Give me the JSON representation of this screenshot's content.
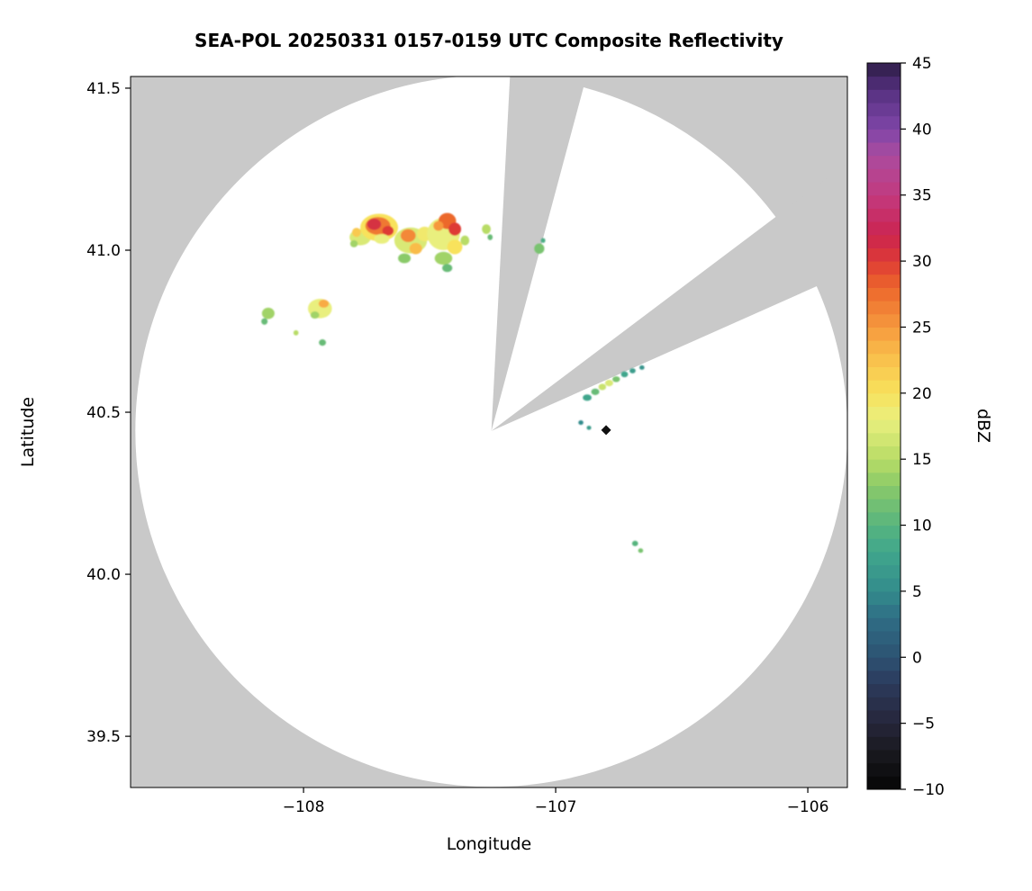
{
  "chart_data": {
    "type": "heatmap",
    "title": "SEA-POL 20250331 0157-0159 UTC Composite Reflectivity",
    "xlabel": "Longitude",
    "ylabel": "Latitude",
    "xlim": [
      -108.686,
      -105.843
    ],
    "ylim": [
      39.342,
      41.536
    ],
    "grid": false,
    "background_color": "#ffffff",
    "outside_range_color": "#c9c9c9",
    "scanned_area_color": "#ffffff",
    "x_ticks": [
      {
        "v": -108,
        "label": "−108"
      },
      {
        "v": -107,
        "label": "−107"
      },
      {
        "v": -106,
        "label": "−106"
      }
    ],
    "y_ticks": [
      {
        "v": 41.5,
        "label": "41.5"
      },
      {
        "v": 41.0,
        "label": "41.0"
      },
      {
        "v": 40.5,
        "label": "40.5"
      },
      {
        "v": 40.0,
        "label": "40.0"
      },
      {
        "v": 39.5,
        "label": "39.5"
      }
    ],
    "colorbar": {
      "label": "dBZ",
      "min": -10,
      "max": 45,
      "position": "right",
      "ticks": [
        {
          "v": 45,
          "label": "45"
        },
        {
          "v": 40,
          "label": "40"
        },
        {
          "v": 35,
          "label": "35"
        },
        {
          "v": 30,
          "label": "30"
        },
        {
          "v": 25,
          "label": "25"
        },
        {
          "v": 20,
          "label": "20"
        },
        {
          "v": 15,
          "label": "15"
        },
        {
          "v": 10,
          "label": "10"
        },
        {
          "v": 5,
          "label": "5"
        },
        {
          "v": 0,
          "label": "0"
        },
        {
          "v": -5,
          "label": "−5"
        },
        {
          "v": -10,
          "label": "−10"
        }
      ],
      "stops": [
        {
          "v": -10,
          "c": "#050505"
        },
        {
          "v": -7,
          "c": "#1a1a20"
        },
        {
          "v": -5,
          "c": "#26263a"
        },
        {
          "v": -2,
          "c": "#2c3a5c"
        },
        {
          "v": 0,
          "c": "#2d5272"
        },
        {
          "v": 3,
          "c": "#2f6e85"
        },
        {
          "v": 5,
          "c": "#338b8c"
        },
        {
          "v": 8,
          "c": "#40a68c"
        },
        {
          "v": 10,
          "c": "#57b47e"
        },
        {
          "v": 13,
          "c": "#8aca69"
        },
        {
          "v": 15,
          "c": "#b8dc66"
        },
        {
          "v": 18,
          "c": "#e9ef7e"
        },
        {
          "v": 20,
          "c": "#f8e25c"
        },
        {
          "v": 23,
          "c": "#f9bc4a"
        },
        {
          "v": 25,
          "c": "#f6993e"
        },
        {
          "v": 28,
          "c": "#ec672c"
        },
        {
          "v": 30,
          "c": "#de3b35"
        },
        {
          "v": 32,
          "c": "#cb2450"
        },
        {
          "v": 35,
          "c": "#c23a7f"
        },
        {
          "v": 38,
          "c": "#ab4b9e"
        },
        {
          "v": 40,
          "c": "#7f45a8"
        },
        {
          "v": 43,
          "c": "#55307f"
        },
        {
          "v": 45,
          "c": "#2d1d46"
        }
      ]
    },
    "radar": {
      "center_lon": -107.255,
      "center_lat": 40.442,
      "radius_lat_deg": 1.098,
      "blocked_sectors_az_deg": [
        [
          3,
          15
        ],
        [
          53,
          66
        ]
      ],
      "site_marker": {
        "lon": -106.8,
        "lat": 40.445,
        "color": "#111111"
      }
    },
    "echoes_format": [
      "lon",
      "lat",
      "width_deg",
      "height_deg",
      "dBZ"
    ],
    "echoes": [
      [
        -107.775,
        41.04,
        0.085,
        0.05,
        17
      ],
      [
        -107.79,
        41.055,
        0.035,
        0.028,
        22
      ],
      [
        -107.8,
        41.02,
        0.03,
        0.022,
        14
      ],
      [
        -107.7,
        41.07,
        0.15,
        0.085,
        20
      ],
      [
        -107.705,
        41.075,
        0.1,
        0.055,
        27
      ],
      [
        -107.72,
        41.08,
        0.055,
        0.035,
        31
      ],
      [
        -107.665,
        41.06,
        0.045,
        0.03,
        30
      ],
      [
        -107.69,
        41.035,
        0.06,
        0.03,
        18
      ],
      [
        -107.575,
        41.03,
        0.13,
        0.08,
        17
      ],
      [
        -107.585,
        41.045,
        0.06,
        0.04,
        26
      ],
      [
        -107.555,
        41.005,
        0.05,
        0.035,
        23
      ],
      [
        -107.6,
        40.975,
        0.05,
        0.03,
        13
      ],
      [
        -107.52,
        41.05,
        0.06,
        0.045,
        19
      ],
      [
        -107.445,
        41.05,
        0.13,
        0.1,
        18
      ],
      [
        -107.43,
        41.09,
        0.07,
        0.05,
        28
      ],
      [
        -107.4,
        41.065,
        0.05,
        0.04,
        30
      ],
      [
        -107.465,
        41.075,
        0.04,
        0.03,
        25
      ],
      [
        -107.4,
        41.01,
        0.06,
        0.045,
        20
      ],
      [
        -107.445,
        40.975,
        0.07,
        0.04,
        14
      ],
      [
        -107.43,
        40.945,
        0.04,
        0.025,
        11
      ],
      [
        -107.36,
        41.03,
        0.035,
        0.03,
        15
      ],
      [
        -107.275,
        41.065,
        0.035,
        0.03,
        15
      ],
      [
        -107.26,
        41.04,
        0.02,
        0.018,
        11
      ],
      [
        -107.065,
        41.005,
        0.04,
        0.032,
        12
      ],
      [
        -107.05,
        41.03,
        0.018,
        0.015,
        9
      ],
      [
        -107.935,
        40.82,
        0.095,
        0.06,
        18
      ],
      [
        -107.92,
        40.835,
        0.04,
        0.025,
        24
      ],
      [
        -107.955,
        40.8,
        0.035,
        0.022,
        14
      ],
      [
        -108.14,
        40.805,
        0.05,
        0.035,
        14
      ],
      [
        -108.155,
        40.78,
        0.025,
        0.02,
        11
      ],
      [
        -108.03,
        40.745,
        0.02,
        0.016,
        15
      ],
      [
        -107.925,
        40.715,
        0.028,
        0.02,
        11
      ],
      [
        -106.875,
        40.545,
        0.035,
        0.02,
        8
      ],
      [
        -106.843,
        40.563,
        0.032,
        0.02,
        11
      ],
      [
        -106.815,
        40.578,
        0.03,
        0.02,
        16
      ],
      [
        -106.788,
        40.59,
        0.032,
        0.02,
        17
      ],
      [
        -106.76,
        40.602,
        0.03,
        0.018,
        12
      ],
      [
        -106.727,
        40.617,
        0.028,
        0.018,
        8
      ],
      [
        -106.695,
        40.628,
        0.024,
        0.016,
        7
      ],
      [
        -106.658,
        40.638,
        0.02,
        0.014,
        6
      ],
      [
        -106.9,
        40.468,
        0.02,
        0.014,
        5
      ],
      [
        -106.868,
        40.452,
        0.018,
        0.013,
        7
      ],
      [
        -106.685,
        40.095,
        0.024,
        0.017,
        10
      ],
      [
        -106.663,
        40.073,
        0.02,
        0.014,
        12
      ]
    ]
  }
}
